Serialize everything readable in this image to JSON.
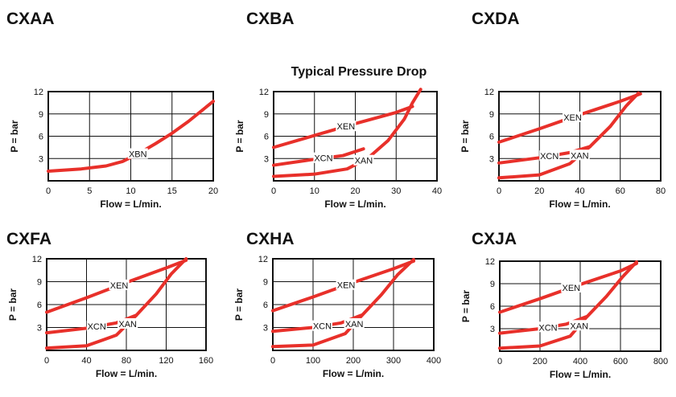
{
  "subtitle": "Typical Pressure Drop",
  "colors": {
    "curve": "#e8302a",
    "grid": "#111111",
    "label_bg": "#ffffff"
  },
  "chart_data": [
    {
      "type": "line",
      "title": "CXAA",
      "xlabel": "Flow = L/min.",
      "ylabel": "P = bar",
      "xlim": [
        0,
        20
      ],
      "ylim": [
        0,
        12
      ],
      "x_ticks": [
        "0",
        "5",
        "10",
        "15",
        "20"
      ],
      "y_ticks": [
        "3",
        "6",
        "9",
        "12"
      ],
      "grid": true,
      "series": [
        {
          "name": "XBN",
          "points": [
            [
              0,
              1.3
            ],
            [
              4,
              1.6
            ],
            [
              7,
              2.0
            ],
            [
              9,
              2.6
            ],
            [
              11,
              3.7
            ],
            [
              13,
              5.0
            ],
            [
              15,
              6.4
            ],
            [
              17,
              8.0
            ],
            [
              20,
              10.7
            ]
          ]
        }
      ]
    },
    {
      "type": "line",
      "title": "CXBA",
      "xlabel": "Flow = L/min.",
      "ylabel": "P = bar",
      "xlim": [
        0,
        40
      ],
      "ylim": [
        0,
        12
      ],
      "x_ticks": [
        "0",
        "10",
        "20",
        "30",
        "40"
      ],
      "y_ticks": [
        "3",
        "6",
        "9",
        "12"
      ],
      "grid": true,
      "series": [
        {
          "name": "XEN",
          "points": [
            [
              0,
              4.5
            ],
            [
              10,
              6.1
            ],
            [
              20,
              7.7
            ],
            [
              30,
              9.2
            ],
            [
              34,
              10.0
            ]
          ]
        },
        {
          "name": "XCN",
          "points": [
            [
              0,
              2.1
            ],
            [
              10,
              2.9
            ],
            [
              17,
              3.4
            ],
            [
              22,
              4.3
            ]
          ]
        },
        {
          "name": "XAN",
          "points": [
            [
              0,
              0.6
            ],
            [
              10,
              0.9
            ],
            [
              18,
              1.6
            ],
            [
              23,
              3.0
            ],
            [
              28,
              5.4
            ],
            [
              32,
              8.3
            ],
            [
              34,
              10.5
            ],
            [
              36,
              12.3
            ]
          ]
        }
      ]
    },
    {
      "type": "line",
      "title": "CXDA",
      "xlabel": "Flow = L/min.",
      "ylabel": "P = bar",
      "xlim": [
        0,
        80
      ],
      "ylim": [
        0,
        12
      ],
      "x_ticks": [
        "0",
        "20",
        "40",
        "60",
        "80"
      ],
      "y_ticks": [
        "3",
        "6",
        "9",
        "12"
      ],
      "grid": true,
      "series": [
        {
          "name": "XEN",
          "points": [
            [
              0,
              5.2
            ],
            [
              20,
              7.0
            ],
            [
              40,
              8.9
            ],
            [
              60,
              10.7
            ],
            [
              70,
              11.7
            ]
          ]
        },
        {
          "name": "XCN",
          "points": [
            [
              0,
              2.4
            ],
            [
              20,
              3.1
            ],
            [
              35,
              3.8
            ],
            [
              45,
              4.6
            ]
          ]
        },
        {
          "name": "XAN",
          "points": [
            [
              0,
              0.4
            ],
            [
              20,
              0.8
            ],
            [
              35,
              2.3
            ],
            [
              45,
              4.6
            ],
            [
              55,
              7.3
            ],
            [
              63,
              10.1
            ],
            [
              69,
              11.8
            ]
          ]
        }
      ]
    },
    {
      "type": "line",
      "title": "CXFA",
      "xlabel": "Flow = L/min.",
      "ylabel": "P = bar",
      "xlim": [
        0,
        160
      ],
      "ylim": [
        0,
        12
      ],
      "x_ticks": [
        "0",
        "40",
        "80",
        "120",
        "160"
      ],
      "y_ticks": [
        "3",
        "6",
        "9",
        "12"
      ],
      "grid": true,
      "series": [
        {
          "name": "XEN",
          "points": [
            [
              0,
              5.0
            ],
            [
              40,
              6.9
            ],
            [
              80,
              8.9
            ],
            [
              120,
              10.8
            ],
            [
              140,
              11.8
            ]
          ]
        },
        {
          "name": "XCN",
          "points": [
            [
              0,
              2.3
            ],
            [
              40,
              2.9
            ],
            [
              70,
              3.6
            ],
            [
              90,
              4.6
            ]
          ]
        },
        {
          "name": "XAN",
          "points": [
            [
              0,
              0.3
            ],
            [
              40,
              0.6
            ],
            [
              70,
              2.0
            ],
            [
              90,
              4.6
            ],
            [
              110,
              7.4
            ],
            [
              125,
              10.0
            ],
            [
              140,
              12.0
            ]
          ]
        }
      ]
    },
    {
      "type": "line",
      "title": "CXHA",
      "xlabel": "Flow = L/min.",
      "ylabel": "P = bar",
      "xlim": [
        0,
        400
      ],
      "ylim": [
        0,
        12
      ],
      "x_ticks": [
        "0",
        "100",
        "200",
        "300",
        "400"
      ],
      "y_ticks": [
        "3",
        "6",
        "9",
        "12"
      ],
      "grid": true,
      "series": [
        {
          "name": "XEN",
          "points": [
            [
              0,
              5.2
            ],
            [
              100,
              7.0
            ],
            [
              200,
              8.9
            ],
            [
              300,
              10.7
            ],
            [
              350,
              11.7
            ]
          ]
        },
        {
          "name": "XCN",
          "points": [
            [
              0,
              2.5
            ],
            [
              100,
              3.0
            ],
            [
              170,
              3.6
            ],
            [
              220,
              4.6
            ]
          ]
        },
        {
          "name": "XAN",
          "points": [
            [
              0,
              0.5
            ],
            [
              100,
              0.7
            ],
            [
              180,
              2.2
            ],
            [
              220,
              4.5
            ],
            [
              270,
              7.3
            ],
            [
              310,
              9.9
            ],
            [
              350,
              11.9
            ]
          ]
        }
      ]
    },
    {
      "type": "line",
      "title": "CXJA",
      "xlabel": "Flow = L/min.",
      "ylabel": "P = bar",
      "xlim": [
        0,
        800
      ],
      "ylim": [
        0,
        12
      ],
      "x_ticks": [
        "0",
        "200",
        "400",
        "600",
        "800"
      ],
      "y_ticks": [
        "3",
        "6",
        "9",
        "12"
      ],
      "grid": true,
      "series": [
        {
          "name": "XEN",
          "points": [
            [
              0,
              5.2
            ],
            [
              200,
              7.0
            ],
            [
              400,
              8.9
            ],
            [
              600,
              10.7
            ],
            [
              680,
              11.7
            ]
          ]
        },
        {
          "name": "XCN",
          "points": [
            [
              0,
              2.4
            ],
            [
              200,
              3.0
            ],
            [
              330,
              3.6
            ],
            [
              430,
              4.6
            ]
          ]
        },
        {
          "name": "XAN",
          "points": [
            [
              0,
              0.4
            ],
            [
              200,
              0.7
            ],
            [
              350,
              2.0
            ],
            [
              430,
              4.5
            ],
            [
              530,
              7.3
            ],
            [
              610,
              9.9
            ],
            [
              680,
              11.9
            ]
          ]
        }
      ]
    }
  ]
}
